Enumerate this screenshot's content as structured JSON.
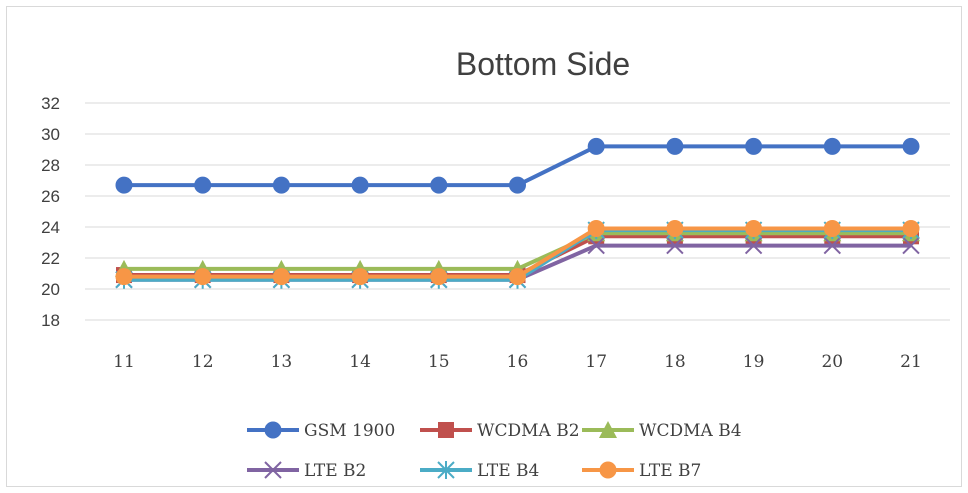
{
  "chart_data": {
    "type": "line",
    "title": "Bottom Side",
    "xlabel": "",
    "ylabel": "",
    "categories": [
      "11",
      "12",
      "13",
      "14",
      "15",
      "16",
      "17",
      "18",
      "19",
      "20",
      "21"
    ],
    "yticks": [
      18,
      20,
      22,
      24,
      26,
      28,
      30,
      32
    ],
    "ylim": [
      17,
      32
    ],
    "grid": true,
    "legend_position": "bottom",
    "series": [
      {
        "name": "GSM 1900",
        "color": "#4472C4",
        "marker": "circle",
        "values": [
          26.7,
          26.7,
          26.7,
          26.7,
          26.7,
          26.7,
          29.2,
          29.2,
          29.2,
          29.2,
          29.2
        ]
      },
      {
        "name": "WCDMA B2",
        "color": "#C0504D",
        "marker": "square",
        "values": [
          20.9,
          20.9,
          20.9,
          20.9,
          20.9,
          20.9,
          23.4,
          23.4,
          23.4,
          23.4,
          23.4
        ]
      },
      {
        "name": "WCDMA B4",
        "color": "#9BBB59",
        "marker": "triangle",
        "values": [
          21.3,
          21.3,
          21.3,
          21.3,
          21.3,
          21.3,
          23.6,
          23.6,
          23.6,
          23.6,
          23.6
        ]
      },
      {
        "name": "LTE B2",
        "color": "#8064A2",
        "marker": "x",
        "values": [
          20.6,
          20.6,
          20.6,
          20.6,
          20.6,
          20.6,
          22.8,
          22.8,
          22.8,
          22.8,
          22.8
        ]
      },
      {
        "name": "LTE B4",
        "color": "#4BACC6",
        "marker": "star",
        "values": [
          20.6,
          20.6,
          20.6,
          20.6,
          20.6,
          20.6,
          23.8,
          23.8,
          23.8,
          23.8,
          23.8
        ]
      },
      {
        "name": "LTE B7",
        "color": "#F79646",
        "marker": "circle",
        "values": [
          20.8,
          20.8,
          20.8,
          20.8,
          20.8,
          20.8,
          23.9,
          23.9,
          23.9,
          23.9,
          23.9
        ]
      }
    ]
  }
}
